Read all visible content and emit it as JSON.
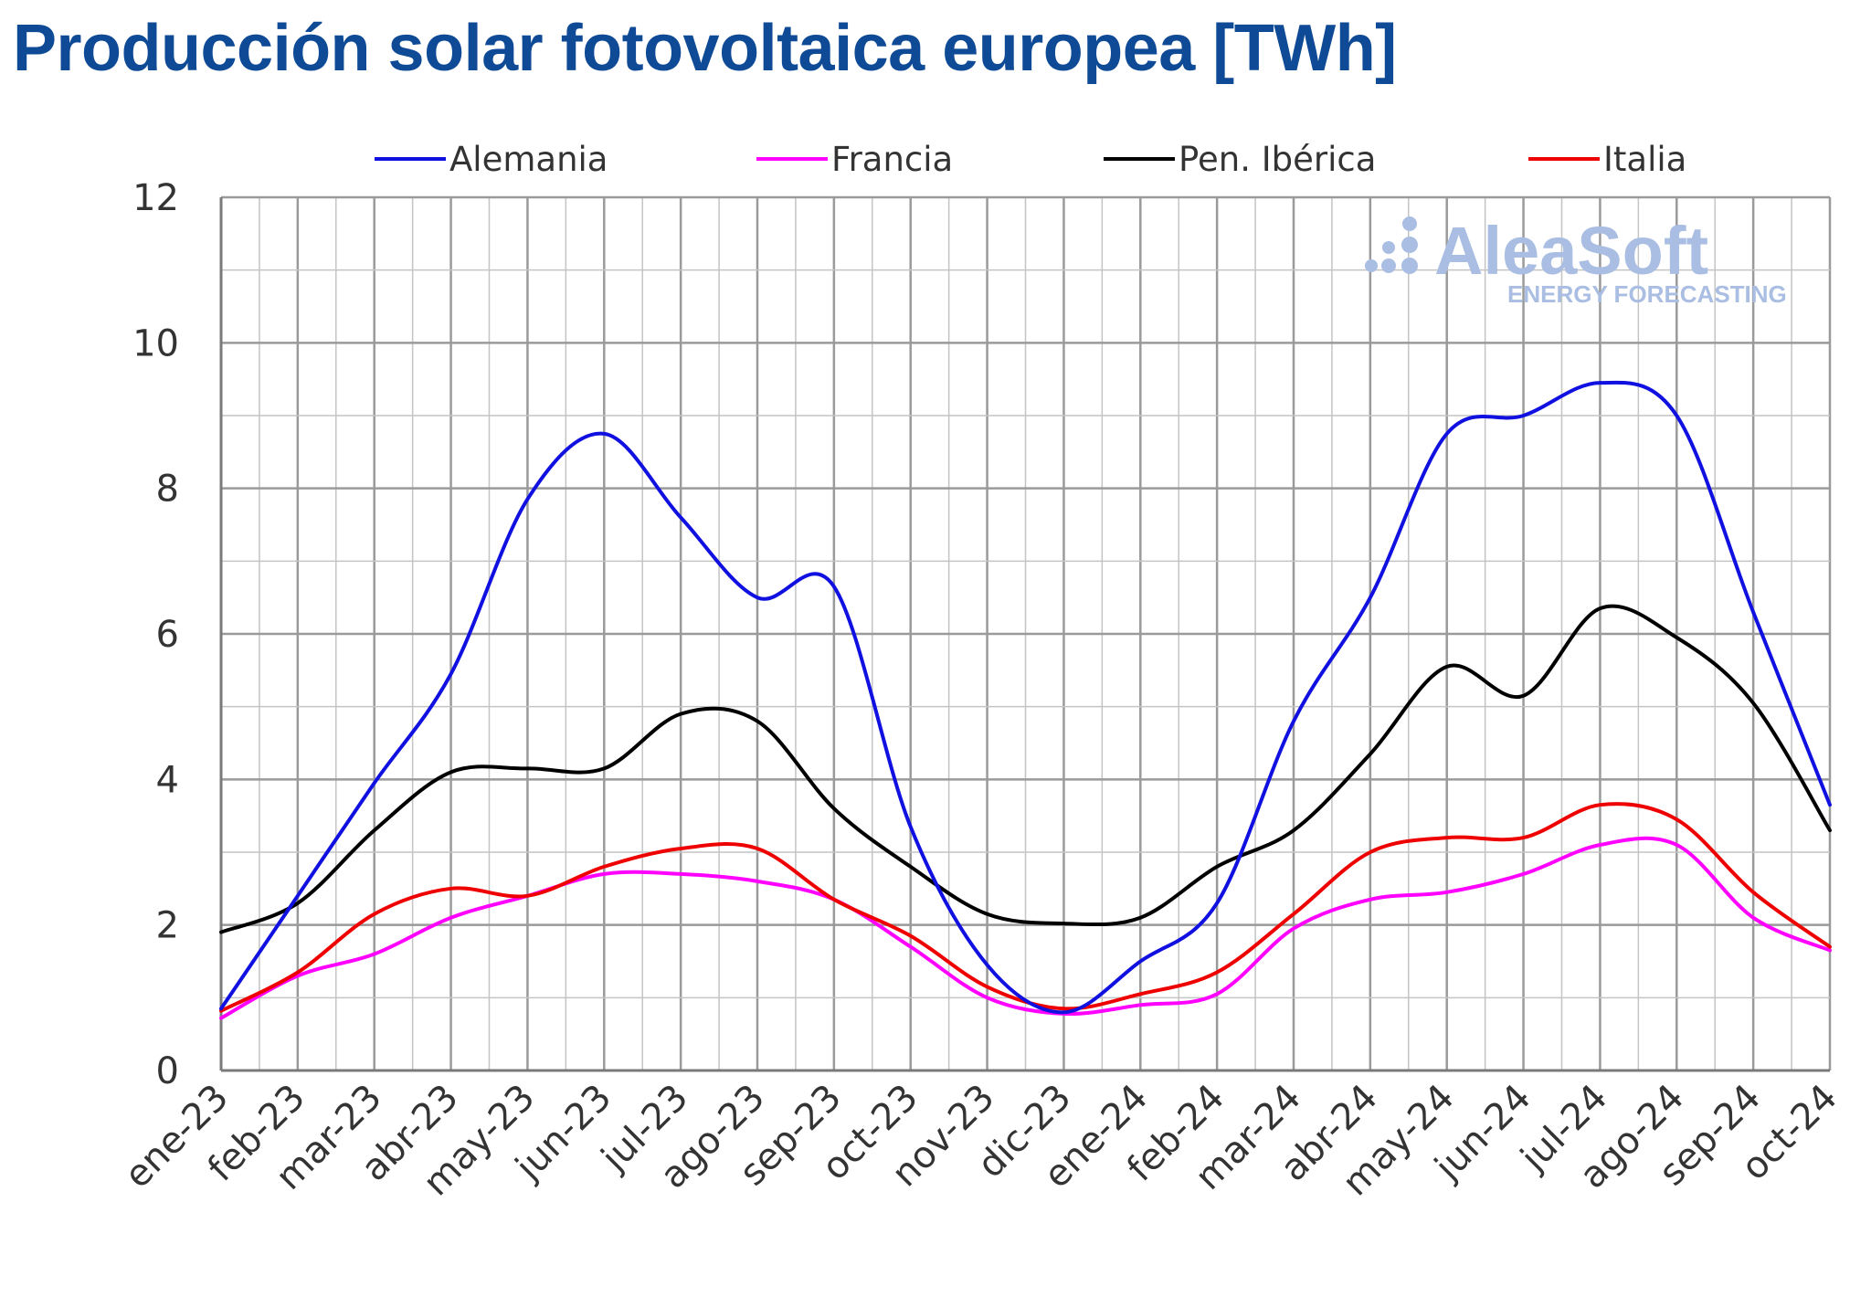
{
  "title": "Producción solar fotovoltaica europea [TWh]",
  "logo": {
    "name": "AleaSoft",
    "tagline": "ENERGY FORECASTING",
    "color": "#a9bee2"
  },
  "chart_data": {
    "type": "line",
    "title": "Producción solar fotovoltaica europea [TWh]",
    "xlabel": "",
    "ylabel": "",
    "ylim": [
      0,
      12
    ],
    "yticks": [
      0,
      2,
      4,
      6,
      8,
      10,
      12
    ],
    "grid": true,
    "legend_position": "top",
    "categories": [
      "ene-23",
      "feb-23",
      "mar-23",
      "abr-23",
      "may-23",
      "jun-23",
      "jul-23",
      "ago-23",
      "sep-23",
      "oct-23",
      "nov-23",
      "dic-23",
      "ene-24",
      "feb-24",
      "mar-24",
      "abr-24",
      "may-24",
      "jun-24",
      "jul-24",
      "ago-24",
      "sep-24",
      "oct-24"
    ],
    "series": [
      {
        "name": "Alemania",
        "color": "#1010e0",
        "values": [
          0.85,
          2.4,
          3.95,
          5.45,
          7.85,
          8.75,
          7.6,
          6.5,
          6.65,
          3.35,
          1.45,
          0.8,
          1.5,
          2.3,
          4.8,
          6.5,
          8.75,
          9.0,
          9.45,
          9.0,
          6.3,
          3.65
        ]
      },
      {
        "name": "Francia",
        "color": "#ff00ff",
        "values": [
          0.72,
          1.3,
          1.6,
          2.1,
          2.4,
          2.7,
          2.7,
          2.6,
          2.35,
          1.7,
          1.0,
          0.78,
          0.9,
          1.05,
          1.95,
          2.35,
          2.45,
          2.7,
          3.1,
          3.1,
          2.1,
          1.65
        ]
      },
      {
        "name": "Pen. Ibérica",
        "color": "#000000",
        "values": [
          1.9,
          2.3,
          3.3,
          4.1,
          4.15,
          4.15,
          4.9,
          4.8,
          3.6,
          2.8,
          2.15,
          2.02,
          2.1,
          2.8,
          3.3,
          4.35,
          5.55,
          5.15,
          6.35,
          5.95,
          5.05,
          3.3
        ]
      },
      {
        "name": "Italia",
        "color": "#ee0000",
        "values": [
          0.82,
          1.35,
          2.15,
          2.5,
          2.4,
          2.8,
          3.05,
          3.05,
          2.35,
          1.85,
          1.15,
          0.85,
          1.05,
          1.35,
          2.15,
          3.0,
          3.2,
          3.2,
          3.65,
          3.45,
          2.45,
          1.7
        ]
      }
    ]
  }
}
